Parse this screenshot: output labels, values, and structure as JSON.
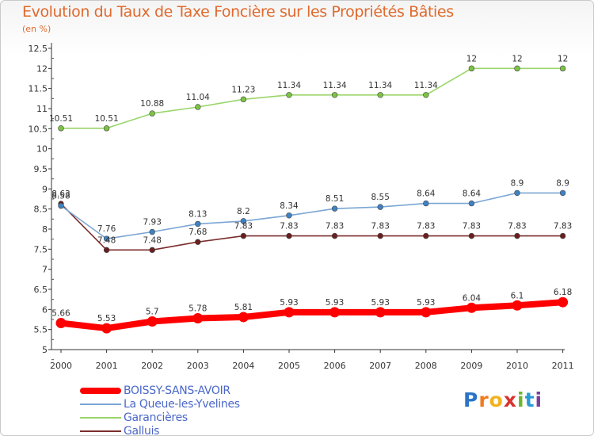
{
  "header": {
    "title": "Evolution du Taux de Taxe Foncière sur les Propriétés Bâties",
    "subtitle": "(en %)"
  },
  "logo": {
    "text": "Proxiti",
    "letters": [
      {
        "ch": "P",
        "color": "#2b74c7"
      },
      {
        "ch": "r",
        "color": "#f07b1d"
      },
      {
        "ch": "o",
        "color": "#f2b21b"
      },
      {
        "ch": "x",
        "color": "#d9322e"
      },
      {
        "ch": "i",
        "color": "#6cb52d"
      },
      {
        "ch": "t",
        "color": "#2b9ad6"
      },
      {
        "ch": "i",
        "color": "#7b3fa0"
      }
    ]
  },
  "chart_data": {
    "type": "line",
    "title": "Evolution du Taux de Taxe Foncière sur les Propriétés Bâties",
    "ylabel": "(en %)",
    "xlabel": "",
    "x": [
      "2000",
      "2001",
      "2002",
      "2003",
      "2004",
      "2005",
      "2006",
      "2007",
      "2008",
      "2009",
      "2010",
      "2011"
    ],
    "ylim": [
      5,
      12.5
    ],
    "yticks": [
      "5",
      "5.5",
      "6",
      "6.5",
      "7",
      "7.5",
      "8",
      "8.5",
      "9",
      "9.5",
      "10",
      "10.5",
      "11",
      "11.5",
      "12",
      "12.5"
    ],
    "grid": "none",
    "legend_position": "bottom",
    "series": [
      {
        "name": "BOISSY-SANS-AVOIR",
        "color": "#ff0000",
        "emphasis": true,
        "values": [
          5.66,
          5.53,
          5.7,
          5.78,
          5.81,
          5.93,
          5.93,
          5.93,
          5.93,
          6.04,
          6.1,
          6.18
        ],
        "labels": [
          "5.66",
          "5.53",
          "5.7",
          "5.78",
          "5.81",
          "5.93",
          "5.93",
          "5.93",
          "5.93",
          "6.04",
          "6.1",
          "6.18"
        ]
      },
      {
        "name": "La Queue-les-Yvelines",
        "color": "#7ba6d4",
        "marker": "#3f82c4",
        "values": [
          8.58,
          7.76,
          7.93,
          8.13,
          8.2,
          8.34,
          8.51,
          8.55,
          8.64,
          8.64,
          8.9,
          8.9
        ],
        "labels": [
          "8.58",
          "7.76",
          "7.93",
          "8.13",
          "8.2",
          "8.34",
          "8.51",
          "8.55",
          "8.64",
          "8.64",
          "8.9",
          "8.9"
        ]
      },
      {
        "name": "Garancières",
        "color": "#9ad56a",
        "marker": "#7cc443",
        "values": [
          10.51,
          10.51,
          10.88,
          11.04,
          11.23,
          11.34,
          11.34,
          11.34,
          11.34,
          12,
          12,
          12
        ],
        "labels": [
          "10.51",
          "10.51",
          "10.88",
          "11.04",
          "11.23",
          "11.34",
          "11.34",
          "11.34",
          "11.34",
          "12",
          "12",
          "12"
        ]
      },
      {
        "name": "Galluis",
        "color": "#7b2d2d",
        "marker": "#6a1f1f",
        "values": [
          8.63,
          7.48,
          7.48,
          7.68,
          7.83,
          7.83,
          7.83,
          7.83,
          7.83,
          7.83,
          7.83,
          7.83
        ],
        "labels": [
          "8.63",
          "7.48",
          "7.48",
          "7.68",
          "7.83",
          "7.83",
          "7.83",
          "7.83",
          "7.83",
          "7.83",
          "7.83",
          "7.83"
        ]
      }
    ]
  }
}
